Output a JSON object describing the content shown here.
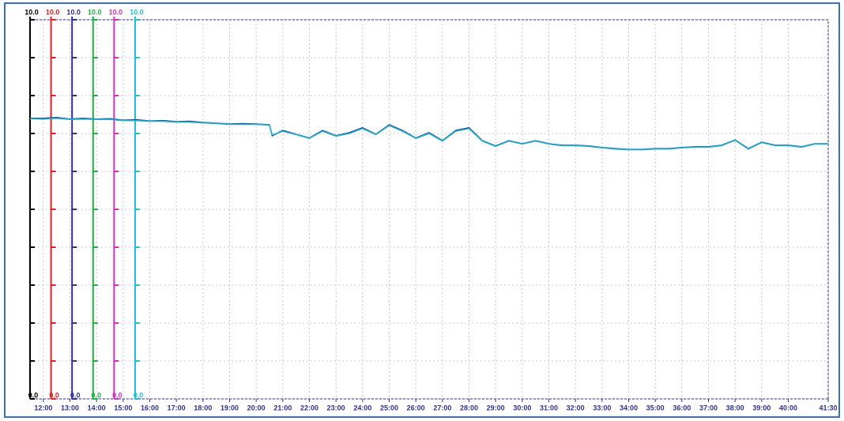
{
  "chart_data": {
    "type": "line",
    "axes": [
      {
        "color": "#000000",
        "top_label": "10.0",
        "bottom_label": "0.0"
      },
      {
        "color": "#e02020",
        "top_label": "10.0",
        "bottom_label": "0.0"
      },
      {
        "color": "#303090",
        "top_label": "10.0",
        "bottom_label": "0.0"
      },
      {
        "color": "#20b040",
        "top_label": "10.0",
        "bottom_label": "0.0"
      },
      {
        "color": "#d030c0",
        "top_label": "10.0",
        "bottom_label": "0.0"
      },
      {
        "color": "#20c0d0",
        "top_label": "10.0",
        "bottom_label": "0.0"
      }
    ],
    "ylim": [
      0,
      10
    ],
    "yticks": [
      0,
      1,
      2,
      3,
      4,
      5,
      6,
      7,
      8,
      9,
      10
    ],
    "xlim": [
      11.5,
      41.5
    ],
    "xticks": [
      {
        "value": 12,
        "label": "12:00"
      },
      {
        "value": 13,
        "label": "13:00"
      },
      {
        "value": 14,
        "label": "14:00"
      },
      {
        "value": 15,
        "label": "15:00"
      },
      {
        "value": 16,
        "label": "16:00"
      },
      {
        "value": 17,
        "label": "17:00"
      },
      {
        "value": 18,
        "label": "18:00"
      },
      {
        "value": 19,
        "label": "19:00"
      },
      {
        "value": 20,
        "label": "20:00"
      },
      {
        "value": 21,
        "label": "21:00"
      },
      {
        "value": 22,
        "label": "22:00"
      },
      {
        "value": 23,
        "label": "23:00"
      },
      {
        "value": 24,
        "label": "24:00"
      },
      {
        "value": 25,
        "label": "25:00"
      },
      {
        "value": 26,
        "label": "26:00"
      },
      {
        "value": 27,
        "label": "27:00"
      },
      {
        "value": 28,
        "label": "28:00"
      },
      {
        "value": 29,
        "label": "29:00"
      },
      {
        "value": 30,
        "label": "30:00"
      },
      {
        "value": 31,
        "label": "31:00"
      },
      {
        "value": 32,
        "label": "32:00"
      },
      {
        "value": 33,
        "label": "33:00"
      },
      {
        "value": 34,
        "label": "34:00"
      },
      {
        "value": 35,
        "label": "35:00"
      },
      {
        "value": 36,
        "label": "36:00"
      },
      {
        "value": 37,
        "label": "37:00"
      },
      {
        "value": 38,
        "label": "38:00"
      },
      {
        "value": 39,
        "label": "39:00"
      },
      {
        "value": 40,
        "label": "40:00"
      },
      {
        "value": 41.5,
        "label": "41:30"
      }
    ],
    "grid": true,
    "x": [
      11.5,
      12,
      12.5,
      13,
      13.5,
      14,
      14.5,
      15,
      15.5,
      16,
      16.5,
      17,
      17.5,
      18,
      18.5,
      19,
      19.5,
      20,
      20.5,
      20.6,
      21,
      21.5,
      22,
      22.5,
      23,
      23.5,
      24,
      24.5,
      25,
      25.5,
      26,
      26.5,
      27,
      27.5,
      28,
      28.5,
      29,
      29.5,
      30,
      30.5,
      31,
      31.5,
      32,
      32.5,
      33,
      33.5,
      34,
      34.5,
      35,
      35.5,
      36,
      36.5,
      37,
      37.5,
      38,
      38.5,
      39,
      39.5,
      40,
      40.5,
      41,
      41.5
    ],
    "series": [
      {
        "color": "#303090",
        "values": [
          7.4,
          7.4,
          7.42,
          7.38,
          7.4,
          7.38,
          7.39,
          7.35,
          7.36,
          7.33,
          7.34,
          7.31,
          7.32,
          7.29,
          7.27,
          7.25,
          7.26,
          7.25,
          7.23,
          6.94,
          7.08,
          6.98,
          6.88,
          7.08,
          6.94,
          7.02,
          7.15,
          6.98,
          7.23,
          7.08,
          6.88,
          7.02,
          6.81,
          7.08,
          7.15,
          6.81,
          6.67,
          6.81,
          6.73,
          6.81,
          6.73,
          6.69,
          6.69,
          6.67,
          6.63,
          6.6,
          6.58,
          6.58,
          6.6,
          6.6,
          6.63,
          6.65,
          6.65,
          6.69,
          6.83,
          6.6,
          6.77,
          6.69,
          6.69,
          6.65,
          6.73,
          6.73
        ]
      },
      {
        "color": "#20b8cc",
        "values": [
          7.39,
          7.38,
          7.4,
          7.37,
          7.38,
          7.37,
          7.37,
          7.34,
          7.34,
          7.32,
          7.32,
          7.3,
          7.3,
          7.28,
          7.26,
          7.24,
          7.24,
          7.24,
          7.22,
          6.96,
          7.06,
          6.97,
          6.87,
          7.06,
          6.93,
          7.0,
          7.13,
          6.97,
          7.21,
          7.06,
          6.87,
          7.0,
          6.8,
          7.06,
          7.13,
          6.8,
          6.66,
          6.8,
          6.72,
          6.8,
          6.72,
          6.68,
          6.68,
          6.66,
          6.62,
          6.59,
          6.57,
          6.57,
          6.59,
          6.59,
          6.62,
          6.64,
          6.64,
          6.68,
          6.82,
          6.59,
          6.76,
          6.68,
          6.68,
          6.64,
          6.72,
          6.72
        ]
      }
    ]
  }
}
